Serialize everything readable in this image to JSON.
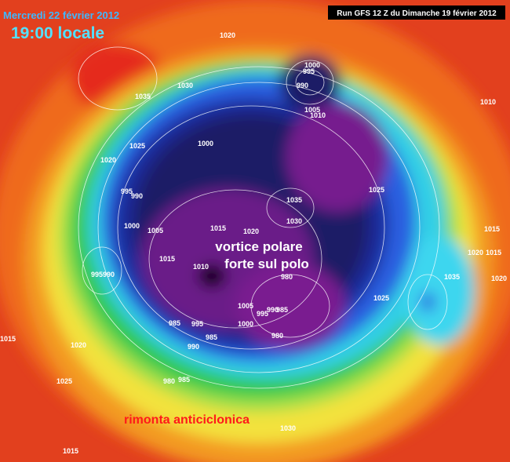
{
  "header": {
    "date": "Mercredi 22 février 2012",
    "time": "19:00 locale",
    "run": "Run GFS 12 Z du Dimanche 19 février 2012"
  },
  "annotations": [
    "vortice polare",
    "forte sul polo",
    "rimonta anticiclonica"
  ],
  "isobar_labels": [
    "1020",
    "1035",
    "1030",
    "1000",
    "995",
    "990",
    "1005",
    "1010",
    "1010",
    "1025",
    "1020",
    "1000",
    "995",
    "990",
    "1025",
    "1035",
    "1030",
    "1000",
    "1005",
    "1015",
    "1020",
    "1015",
    "1010",
    "995",
    "990",
    "980",
    "1015",
    "1020",
    "1015",
    "1020",
    "1035",
    "1025",
    "1005",
    "995",
    "990",
    "985",
    "1000",
    "985",
    "995",
    "985",
    "990",
    "980",
    "1015",
    "1020",
    "1025",
    "980",
    "985",
    "1030",
    "1015"
  ]
}
